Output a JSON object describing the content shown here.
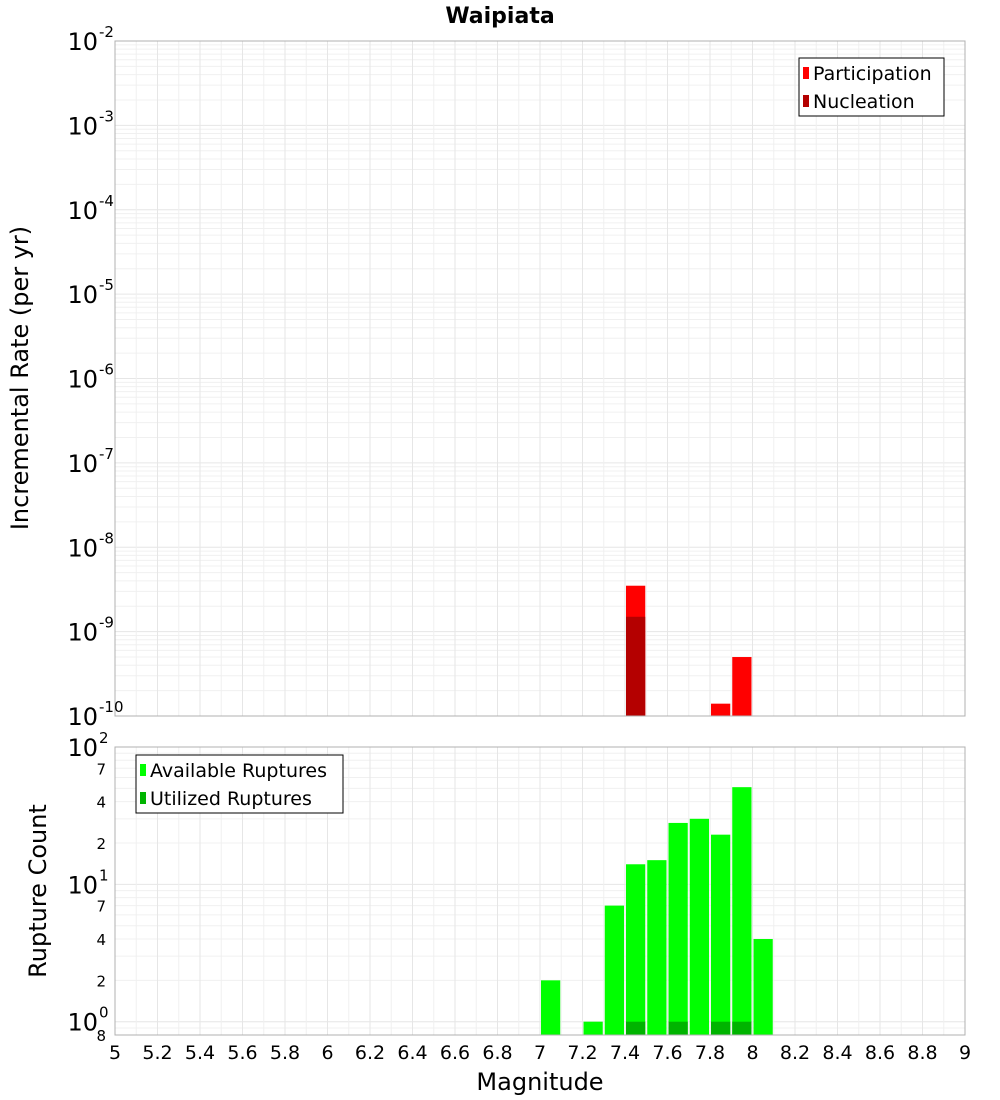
{
  "title": "Waipiata",
  "chart_data": [
    {
      "type": "bar",
      "panel": "top",
      "ylabel": "Incremental Rate (per yr)",
      "yscale": "log",
      "ylim": [
        1e-10,
        0.01
      ],
      "xlim": [
        5,
        9
      ],
      "bar_width": 0.1,
      "grid": true,
      "legend_placement": "top-right",
      "y_ticks": [
        {
          "base": "10",
          "exp": "-2",
          "value": 0.01
        },
        {
          "base": "10",
          "exp": "-3",
          "value": 0.001
        },
        {
          "base": "10",
          "exp": "-4",
          "value": 0.0001
        },
        {
          "base": "10",
          "exp": "-5",
          "value": 1e-05
        },
        {
          "base": "10",
          "exp": "-6",
          "value": 1e-06
        },
        {
          "base": "10",
          "exp": "-7",
          "value": 1e-07
        },
        {
          "base": "10",
          "exp": "-8",
          "value": 1e-08
        },
        {
          "base": "10",
          "exp": "-9",
          "value": 1e-09
        },
        {
          "base": "10",
          "exp": "-10",
          "value": 1e-10
        }
      ],
      "series": [
        {
          "name": "Participation",
          "color": "#ff0000",
          "points": [
            {
              "x": 7.45,
              "y": 3.5e-09
            },
            {
              "x": 7.85,
              "y": 1.4e-10
            },
            {
              "x": 7.95,
              "y": 5e-10
            }
          ]
        },
        {
          "name": "Nucleation",
          "color": "#b40000",
          "points": [
            {
              "x": 7.45,
              "y": 1.5e-09
            }
          ]
        }
      ]
    },
    {
      "type": "bar",
      "panel": "bottom",
      "ylabel": "Rupture Count",
      "yscale": "log",
      "ylim": [
        0.8,
        100
      ],
      "xlim": [
        5,
        9
      ],
      "bar_width": 0.1,
      "grid": true,
      "legend_placement": "top-left",
      "y_ticks": [
        {
          "base": "10",
          "exp": "2",
          "value": 100
        },
        {
          "base": "10",
          "exp": "1",
          "value": 10
        },
        {
          "base": "10",
          "exp": "0",
          "value": 1
        }
      ],
      "y_minor_ticks": [
        {
          "label": "7",
          "value": 70
        },
        {
          "label": "4",
          "value": 40
        },
        {
          "label": "2",
          "value": 20
        },
        {
          "label": "7",
          "value": 7
        },
        {
          "label": "4",
          "value": 4
        },
        {
          "label": "2",
          "value": 2
        },
        {
          "label": "8",
          "value": 0.8
        }
      ],
      "series": [
        {
          "name": "Available Ruptures",
          "color": "#00ff00",
          "points": [
            {
              "x": 7.05,
              "y": 2
            },
            {
              "x": 7.25,
              "y": 1
            },
            {
              "x": 7.35,
              "y": 7
            },
            {
              "x": 7.45,
              "y": 14
            },
            {
              "x": 7.55,
              "y": 15
            },
            {
              "x": 7.65,
              "y": 28
            },
            {
              "x": 7.75,
              "y": 30
            },
            {
              "x": 7.85,
              "y": 23
            },
            {
              "x": 7.95,
              "y": 51
            },
            {
              "x": 8.05,
              "y": 4
            }
          ]
        },
        {
          "name": "Utilized Ruptures",
          "color": "#00b400",
          "points": [
            {
              "x": 7.45,
              "y": 1
            },
            {
              "x": 7.65,
              "y": 1
            },
            {
              "x": 7.85,
              "y": 1
            },
            {
              "x": 7.95,
              "y": 1
            }
          ]
        }
      ]
    }
  ],
  "xaxis": {
    "label": "Magnitude",
    "ticks": [
      "5",
      "5.2",
      "5.4",
      "5.6",
      "5.8",
      "6",
      "6.2",
      "6.4",
      "6.6",
      "6.8",
      "7",
      "7.2",
      "7.4",
      "7.6",
      "7.8",
      "8",
      "8.2",
      "8.4",
      "8.6",
      "8.8",
      "9"
    ],
    "tick_values": [
      5,
      5.2,
      5.4,
      5.6,
      5.8,
      6,
      6.2,
      6.4,
      6.6,
      6.8,
      7,
      7.2,
      7.4,
      7.6,
      7.8,
      8,
      8.2,
      8.4,
      8.6,
      8.8,
      9
    ]
  }
}
